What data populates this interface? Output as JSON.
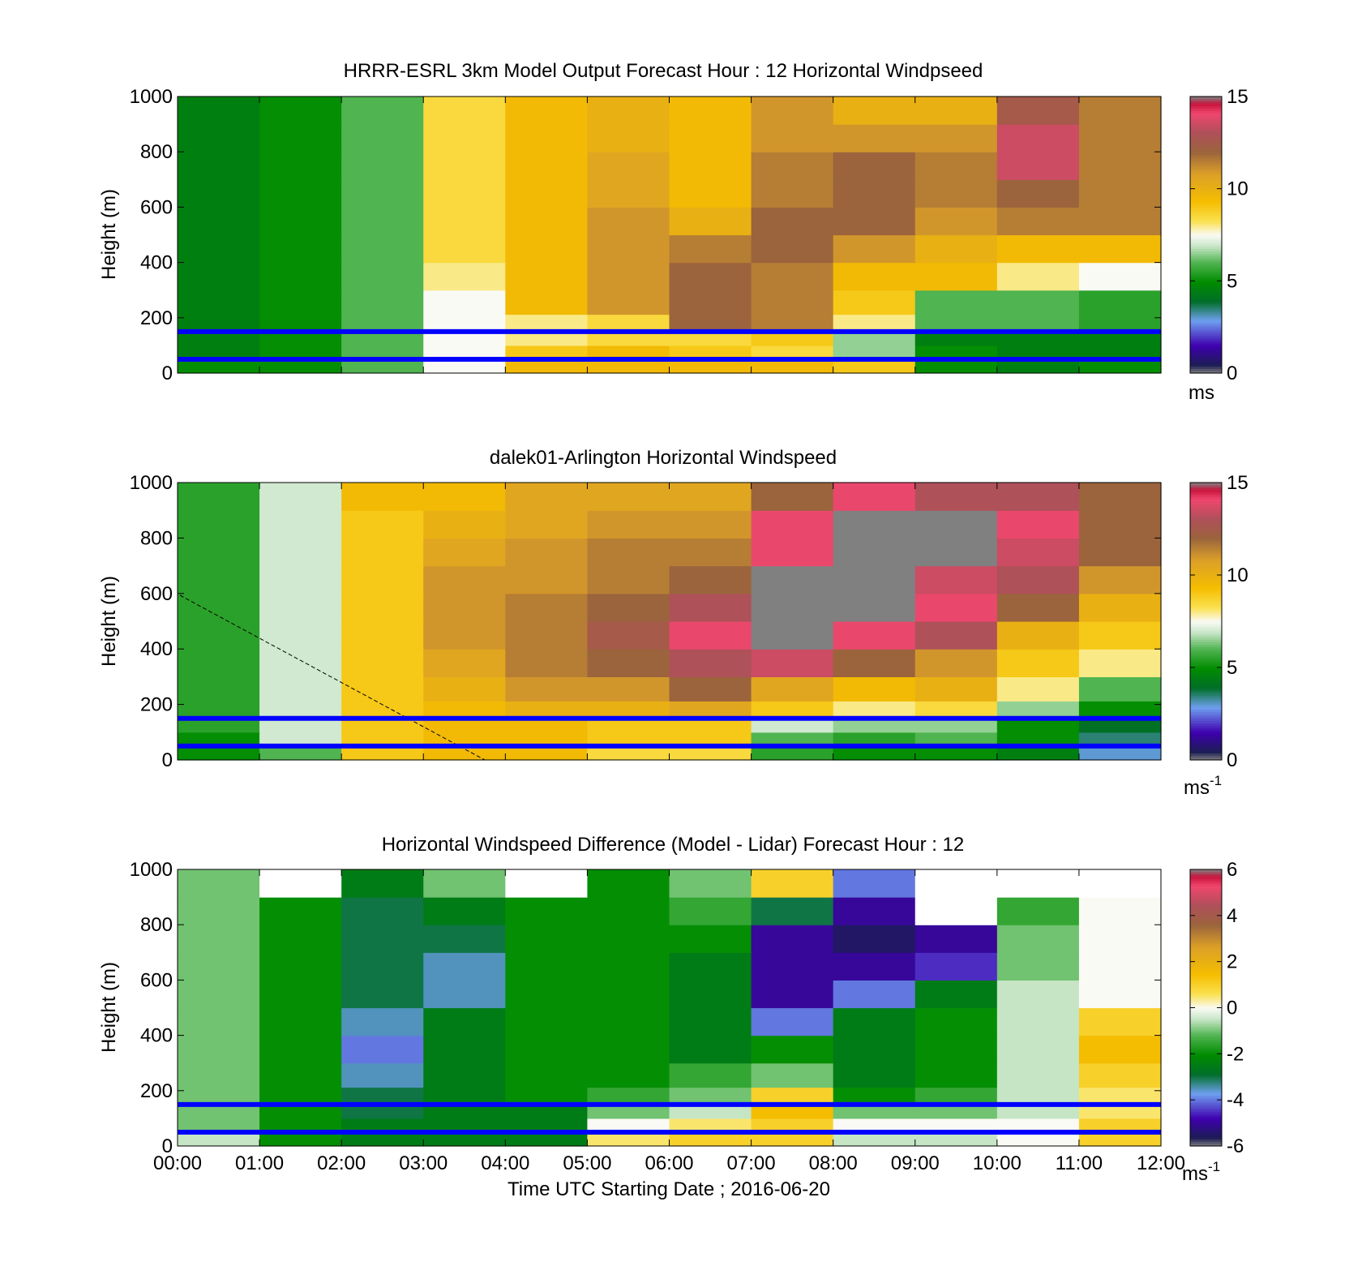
{
  "figure": {
    "xlabel": "Time UTC  Starting Date ; 2016-06-20",
    "xticks": [
      "00:00",
      "01:00",
      "02:00",
      "03:00",
      "04:00",
      "05:00",
      "06:00",
      "07:00",
      "08:00",
      "09:00",
      "10:00",
      "11:00",
      "12:00"
    ]
  },
  "colors": {
    "reference_line": "#0000ff",
    "masked": "#808080"
  },
  "chart_data": [
    {
      "type": "heatmap",
      "title": "HRRR-ESRL 3km Model Output   Forecast Hour : 12 Horizontal Windpseed",
      "ylabel": "Height (m)",
      "yticks": [
        "0",
        "200",
        "400",
        "600",
        "800",
        "1000"
      ],
      "ylim": [
        0,
        1000
      ],
      "xlim_hours": [
        0,
        12
      ],
      "reference_lines_m": [
        150,
        50
      ],
      "colorbar": {
        "min": 0,
        "max": 15,
        "ticks": [
          "0",
          "5",
          "10",
          "15"
        ],
        "unit": "ms",
        "unit_sup": ""
      },
      "x_hours": [
        0,
        1,
        2,
        3,
        4,
        5,
        6,
        7,
        8,
        9,
        10,
        11
      ],
      "y_m": [
        25,
        75,
        125,
        175,
        250,
        350,
        450,
        550,
        650,
        750,
        850,
        950
      ],
      "z": [
        [
          5,
          5,
          6,
          7.5,
          9.5,
          9.5,
          9.5,
          9.5,
          9,
          5,
          4.5,
          5
        ],
        [
          4.5,
          5,
          6,
          7.5,
          9,
          9.5,
          9,
          8.5,
          6.5,
          5,
          4.5,
          4.5
        ],
        [
          4.5,
          5,
          6,
          7.5,
          8,
          8.5,
          8.5,
          9,
          6.5,
          4.5,
          4.5,
          4.5
        ],
        [
          4.5,
          5,
          6,
          7.5,
          8,
          8.5,
          12,
          11.5,
          8,
          6,
          6,
          5.5
        ],
        [
          4.5,
          5,
          6,
          7.5,
          9.5,
          11,
          12,
          11.5,
          9,
          6,
          6,
          5.5
        ],
        [
          4.5,
          5,
          6,
          8,
          9.5,
          11,
          12,
          11.5,
          9.5,
          9.5,
          8,
          7.5
        ],
        [
          4.5,
          5,
          6,
          8.5,
          9.5,
          11,
          11.5,
          12,
          11,
          10,
          9.5,
          9.5
        ],
        [
          4.5,
          5,
          6,
          8.5,
          9.5,
          11,
          10,
          12,
          12,
          11,
          11.5,
          11.5
        ],
        [
          4.5,
          5,
          6,
          8.5,
          9.5,
          10.5,
          9.5,
          11.5,
          12,
          11.5,
          12,
          11.5
        ],
        [
          4.5,
          5,
          6,
          8.5,
          9.5,
          10.5,
          9.5,
          11.5,
          12,
          11.5,
          13.5,
          11.5
        ],
        [
          4.5,
          5,
          6,
          8.5,
          9.5,
          10,
          9.5,
          11,
          11,
          11,
          13.5,
          11.5
        ],
        [
          4.5,
          5,
          6,
          8.5,
          9.5,
          10,
          9.5,
          11,
          10,
          10,
          12.5,
          11.5
        ]
      ]
    },
    {
      "type": "heatmap",
      "title": "dalek01-Arlington  Horizontal Windspeed",
      "ylabel": "Height (m)",
      "yticks": [
        "0",
        "200",
        "400",
        "600",
        "800",
        "1000"
      ],
      "ylim": [
        0,
        1000
      ],
      "xlim_hours": [
        0,
        12
      ],
      "reference_lines_m": [
        150,
        50
      ],
      "colorbar": {
        "min": 0,
        "max": 15,
        "ticks": [
          "0",
          "5",
          "10",
          "15"
        ],
        "unit": "ms",
        "unit_sup": "-1"
      },
      "x_hours": [
        0,
        1,
        2,
        3,
        4,
        5,
        6,
        7,
        8,
        9,
        10,
        11
      ],
      "y_m": [
        25,
        75,
        125,
        175,
        250,
        350,
        450,
        550,
        650,
        750,
        850,
        950
      ],
      "z": [
        [
          5,
          6,
          9,
          9.5,
          9.5,
          8.5,
          8.5,
          5.5,
          5,
          5,
          4.5,
          3
        ],
        [
          5,
          7,
          9,
          9.5,
          9.5,
          9,
          9,
          6,
          5.5,
          6,
          5,
          3.5
        ],
        [
          5.5,
          7,
          9,
          9.5,
          9.5,
          9,
          9,
          7,
          6.5,
          6.5,
          5,
          4
        ],
        [
          5.5,
          7,
          9,
          9.5,
          10,
          10,
          10.5,
          9,
          8,
          8.5,
          6.5,
          5
        ],
        [
          5.5,
          7,
          9,
          10,
          11,
          11,
          12,
          10.5,
          9.5,
          10,
          8,
          6
        ],
        [
          5.5,
          7,
          9,
          10.5,
          11.5,
          12,
          13,
          13.5,
          12,
          11,
          9,
          8
        ],
        [
          5.5,
          7,
          9,
          11,
          11.5,
          12.5,
          14,
          null,
          14,
          13,
          10,
          9
        ],
        [
          5.5,
          7,
          9,
          11,
          11.5,
          12,
          13,
          null,
          null,
          14,
          12,
          10
        ],
        [
          5.5,
          7,
          9,
          11,
          11,
          11.5,
          12,
          null,
          null,
          13.5,
          13,
          11
        ],
        [
          5.5,
          7,
          9,
          10.5,
          11,
          11.5,
          11.5,
          14,
          null,
          null,
          13.5,
          12
        ],
        [
          5.5,
          7,
          9,
          10,
          10.5,
          11,
          11,
          14,
          null,
          null,
          14,
          12
        ],
        [
          5.5,
          7,
          9.5,
          9.5,
          10.5,
          10.5,
          10.5,
          12,
          14,
          13,
          13,
          12
        ]
      ]
    },
    {
      "type": "heatmap",
      "title": "Horizontal Windspeed Difference (Model - Lidar) Forecast Hour : 12",
      "ylabel": "Height (m)",
      "yticks": [
        "0",
        "200",
        "400",
        "600",
        "800",
        "1000"
      ],
      "ylim": [
        0,
        1000
      ],
      "xlim_hours": [
        0,
        12
      ],
      "reference_lines_m": [
        150,
        50
      ],
      "colorbar": {
        "min": -6,
        "max": 6,
        "ticks": [
          "-6",
          "-4",
          "-2",
          "0",
          "2",
          "4",
          "6"
        ],
        "unit": "ms",
        "unit_sup": "-1"
      },
      "x_hours": [
        0,
        1,
        2,
        3,
        4,
        5,
        6,
        7,
        8,
        9,
        10,
        11
      ],
      "y_m": [
        25,
        75,
        125,
        175,
        250,
        350,
        450,
        550,
        650,
        750,
        850,
        950
      ],
      "z": [
        [
          -0.5,
          -2,
          -2.5,
          -2.5,
          -2.5,
          0.5,
          1,
          1,
          -0.5,
          -0.5,
          0,
          1
        ],
        [
          -1,
          -2,
          -2.5,
          -2.5,
          -2.5,
          0,
          0.5,
          1,
          0,
          0,
          0,
          1
        ],
        [
          -1,
          -2,
          -3,
          -2.5,
          -2.5,
          -1,
          -0.5,
          1.5,
          -1,
          -1,
          -0.5,
          0.5
        ],
        [
          -1,
          -2,
          -3,
          -2.5,
          -2,
          -1.5,
          -1,
          1,
          -2,
          -1.5,
          -0.5,
          0.5
        ],
        [
          -1,
          -2,
          -3.5,
          -2.5,
          -2,
          -2,
          -1.5,
          -1,
          -2.5,
          -2,
          -0.5,
          1
        ],
        [
          -1,
          -2,
          -4,
          -2.5,
          -2,
          -2,
          -2.5,
          -2,
          -2.5,
          -2,
          -0.5,
          1.5
        ],
        [
          -1,
          -2,
          -3.5,
          -2.5,
          -2,
          -2,
          -2.5,
          -4,
          -2.5,
          -2,
          -0.5,
          1
        ],
        [
          -1,
          -2,
          -3,
          -3.5,
          -2,
          -2,
          -2.5,
          -5,
          -4,
          -2.5,
          -0.5,
          0
        ],
        [
          -1,
          -2,
          -3,
          -3.5,
          -2,
          -2,
          -2.5,
          -5,
          -5,
          -4.5,
          -1,
          0
        ],
        [
          -1,
          -2,
          -3,
          -3,
          -2,
          -2,
          -2,
          -5,
          -5.5,
          -5,
          -1,
          0
        ],
        [
          -1,
          -2,
          -3,
          -2.5,
          -2,
          -2,
          -1.5,
          -3,
          -5,
          null,
          -1.5,
          0
        ],
        [
          -1,
          null,
          -2.5,
          -1,
          null,
          -2,
          -1,
          1,
          -4,
          null,
          null,
          null
        ]
      ]
    }
  ]
}
